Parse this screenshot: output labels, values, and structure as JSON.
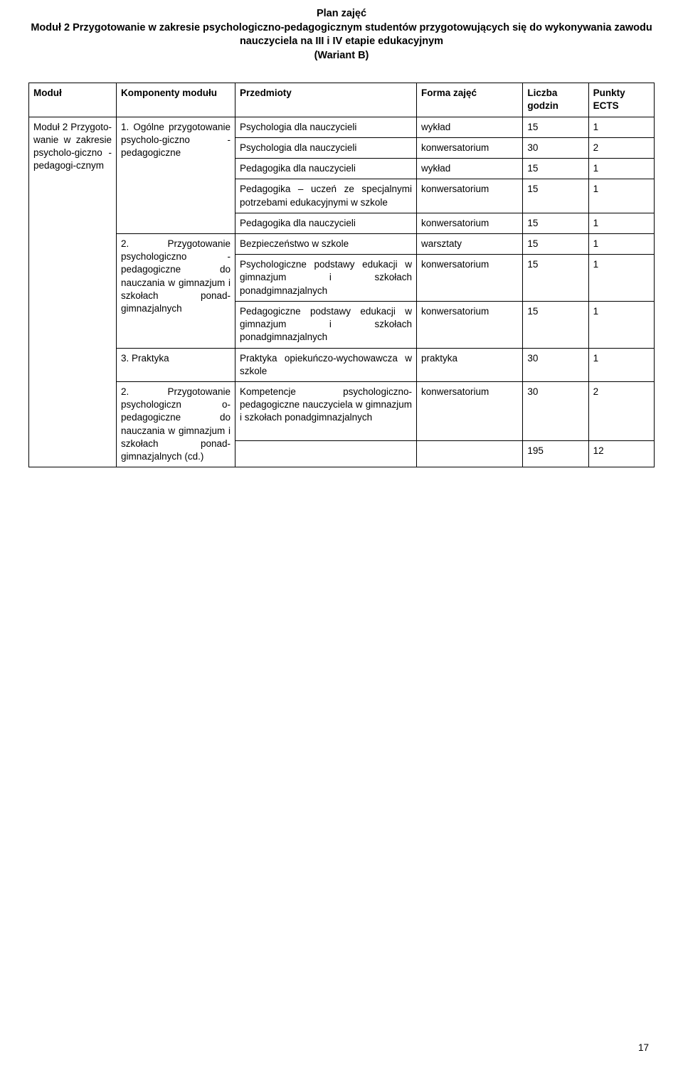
{
  "title": {
    "line1": "Plan zajęć",
    "line2": "Moduł 2 Przygotowanie w zakresie psychologiczno-pedagogicznym studentów przygotowujących się do wykonywania zawodu nauczyciela na III i IV etapie edukacyjnym",
    "line3": "(Wariant B)"
  },
  "headers": {
    "modul": "Moduł",
    "komponenty": "Komponenty modułu",
    "przedmioty": "Przedmioty",
    "forma": "Forma zajęć",
    "liczba": "Liczba godzin",
    "ects": "Punkty ECTS"
  },
  "module_label": "Moduł 2 Przygoto-wanie w zakresie psycholo-giczno - pedagogi-cznym",
  "components": {
    "c1": "1. Ogólne przygotowanie psycholo-giczno - pedagogiczne",
    "c2": "2. Przygotowanie psychologiczno -pedagogiczne do nauczania w gimnazjum i szkołach ponad-gimnazjalnych",
    "c3": "3. Praktyka",
    "c4": "2. Przygotowanie psychologiczn o-pedagogiczne do nauczania w gimnazjum i szkołach ponad-gimnazjalnych (cd.)"
  },
  "rows": {
    "r1": {
      "subject": "Psychologia dla nauczycieli",
      "form": "wykład",
      "hours": "15",
      "ects": "1"
    },
    "r2": {
      "subject": "Psychologia dla nauczycieli",
      "form": "konwersatorium",
      "hours": "30",
      "ects": "2"
    },
    "r3": {
      "subject": "Pedagogika dla nauczycieli",
      "form": "wykład",
      "hours": "15",
      "ects": "1"
    },
    "r4": {
      "subject": "Pedagogika – uczeń ze specjalnymi potrzebami edukacyjnymi w szkole",
      "form": "konwersatorium",
      "hours": "15",
      "ects": "1"
    },
    "r5": {
      "subject": "Pedagogika dla nauczycieli",
      "form": "konwersatorium",
      "hours": "15",
      "ects": "1"
    },
    "r6": {
      "subject": "Bezpieczeństwo w szkole",
      "form": "warsztaty",
      "hours": "15",
      "ects": "1"
    },
    "r7": {
      "subject": "Psychologiczne podstawy edukacji w gimnazjum i szkołach ponadgimnazjalnych",
      "form": "konwersatorium",
      "hours": "15",
      "ects": "1"
    },
    "r8": {
      "subject": "Pedagogiczne podstawy edukacji w gimnazjum i szkołach ponadgimnazjalnych",
      "form": "konwersatorium",
      "hours": "15",
      "ects": "1"
    },
    "r9": {
      "subject": "Praktyka opiekuńczo-wychowawcza w szkole",
      "form": "praktyka",
      "hours": "30",
      "ects": "1"
    },
    "r10": {
      "subject": "Kompetencje psychologiczno-pedagogiczne nauczyciela w gimnazjum i szkołach ponadgimnazjalnych",
      "form": "konwersatorium",
      "hours": "30",
      "ects": "2"
    }
  },
  "totals": {
    "hours": "195",
    "ects": "12"
  },
  "page_number": "17"
}
